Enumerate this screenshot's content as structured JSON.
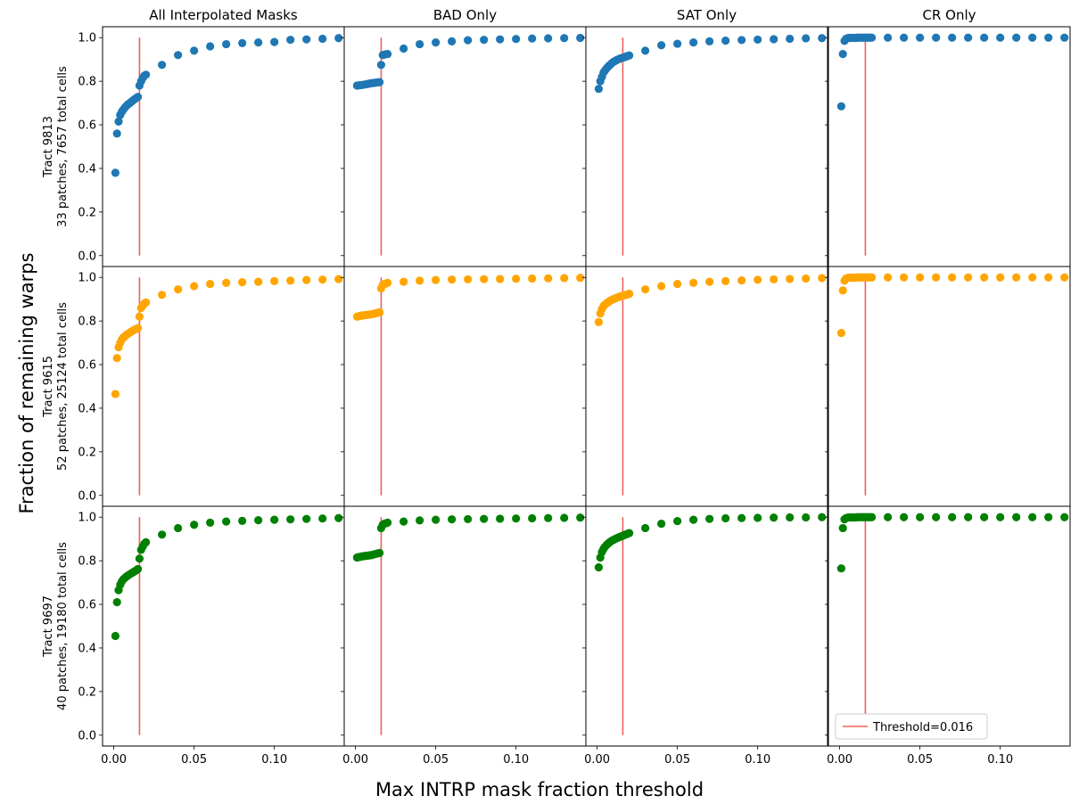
{
  "figure": {
    "xlabel": "Max INTRP mask fraction threshold",
    "ylabel": "Fraction of remaining warps"
  },
  "colors": {
    "row0": "#1f77b4",
    "row1": "#ffa500",
    "row2": "#008000",
    "threshold": "#f0605a"
  },
  "legend": {
    "label": "Threshold=0.016",
    "placement": "lower-right"
  },
  "chart_data": {
    "type": "scatter",
    "xlim": [
      -0.007,
      0.1435
    ],
    "ylim": [
      -0.05,
      1.05
    ],
    "xticks": [
      0.0,
      0.05,
      0.1
    ],
    "xtick_labels": [
      "0.00",
      "0.05",
      "0.10"
    ],
    "yticks": [
      0.0,
      0.2,
      0.4,
      0.6,
      0.8,
      1.0
    ],
    "ytick_labels": [
      "0.0",
      "0.2",
      "0.4",
      "0.6",
      "0.8",
      "1.0"
    ],
    "threshold": 0.016,
    "threshold_ymax": 1.0,
    "thresholds": [
      0.001,
      0.002,
      0.003,
      0.004,
      0.005,
      0.006,
      0.007,
      0.008,
      0.009,
      0.01,
      0.011,
      0.012,
      0.013,
      0.014,
      0.015,
      0.016,
      0.017,
      0.018,
      0.019,
      0.02,
      0.03,
      0.04,
      0.05,
      0.06,
      0.07,
      0.08,
      0.09,
      0.1,
      0.11,
      0.12,
      0.13,
      0.14
    ],
    "columns": [
      "All Interpolated Masks",
      "BAD Only",
      "SAT Only",
      "CR Only"
    ],
    "rows": [
      {
        "label_line1": "Tract 9813",
        "label_line2": "33 patches, 7657 total cells",
        "panels": [
          [
            0.38,
            0.56,
            0.615,
            0.645,
            0.66,
            0.67,
            0.68,
            0.688,
            0.695,
            0.7,
            0.706,
            0.712,
            0.718,
            0.723,
            0.728,
            0.78,
            0.8,
            0.815,
            0.825,
            0.83,
            0.875,
            0.92,
            0.94,
            0.96,
            0.97,
            0.975,
            0.978,
            0.98,
            0.99,
            0.992,
            0.995,
            0.998
          ],
          [
            0.78,
            0.781,
            0.782,
            0.783,
            0.784,
            0.785,
            0.787,
            0.788,
            0.79,
            0.791,
            0.792,
            0.793,
            0.794,
            0.795,
            0.796,
            0.875,
            0.92,
            0.922,
            0.924,
            0.925,
            0.95,
            0.97,
            0.978,
            0.983,
            0.988,
            0.99,
            0.992,
            0.994,
            0.996,
            0.997,
            0.998,
            0.999
          ],
          [
            0.765,
            0.8,
            0.82,
            0.84,
            0.85,
            0.86,
            0.868,
            0.875,
            0.882,
            0.888,
            0.892,
            0.896,
            0.9,
            0.903,
            0.906,
            0.908,
            0.91,
            0.913,
            0.916,
            0.918,
            0.94,
            0.965,
            0.972,
            0.978,
            0.983,
            0.986,
            0.989,
            0.991,
            0.993,
            0.995,
            0.997,
            0.998
          ],
          [
            0.685,
            0.925,
            0.985,
            0.995,
            0.998,
            0.999,
            0.999,
            0.999,
            0.999,
            0.999,
            1.0,
            1.0,
            1.0,
            1.0,
            1.0,
            1.0,
            1.0,
            1.0,
            1.0,
            1.0,
            1.0,
            1.0,
            1.0,
            1.0,
            1.0,
            1.0,
            1.0,
            1.0,
            1.0,
            1.0,
            1.0,
            1.0
          ]
        ]
      },
      {
        "label_line1": "Tract 9615",
        "label_line2": "52 patches, 25124 total cells",
        "panels": [
          [
            0.465,
            0.63,
            0.68,
            0.7,
            0.715,
            0.725,
            0.73,
            0.737,
            0.742,
            0.747,
            0.752,
            0.756,
            0.76,
            0.764,
            0.768,
            0.82,
            0.86,
            0.87,
            0.88,
            0.885,
            0.92,
            0.945,
            0.96,
            0.97,
            0.975,
            0.978,
            0.98,
            0.983,
            0.985,
            0.988,
            0.99,
            0.992
          ],
          [
            0.82,
            0.822,
            0.823,
            0.825,
            0.826,
            0.827,
            0.828,
            0.829,
            0.83,
            0.831,
            0.832,
            0.834,
            0.836,
            0.838,
            0.84,
            0.95,
            0.965,
            0.97,
            0.972,
            0.975,
            0.98,
            0.985,
            0.988,
            0.99,
            0.991,
            0.992,
            0.993,
            0.994,
            0.995,
            0.996,
            0.997,
            0.998
          ],
          [
            0.795,
            0.835,
            0.855,
            0.868,
            0.876,
            0.882,
            0.887,
            0.892,
            0.896,
            0.9,
            0.903,
            0.906,
            0.909,
            0.912,
            0.914,
            0.916,
            0.918,
            0.92,
            0.922,
            0.925,
            0.945,
            0.96,
            0.97,
            0.975,
            0.98,
            0.983,
            0.986,
            0.989,
            0.991,
            0.993,
            0.995,
            0.997
          ],
          [
            0.745,
            0.94,
            0.985,
            0.995,
            0.998,
            0.999,
            0.999,
            0.999,
            0.999,
            0.999,
            1.0,
            1.0,
            1.0,
            1.0,
            1.0,
            1.0,
            1.0,
            1.0,
            1.0,
            1.0,
            1.0,
            1.0,
            1.0,
            1.0,
            1.0,
            1.0,
            1.0,
            1.0,
            1.0,
            1.0,
            1.0,
            1.0
          ]
        ]
      },
      {
        "label_line1": "Tract 9697",
        "label_line2": "40 patches, 19180 total cells",
        "panels": [
          [
            0.455,
            0.61,
            0.665,
            0.69,
            0.705,
            0.715,
            0.722,
            0.728,
            0.733,
            0.738,
            0.743,
            0.747,
            0.752,
            0.756,
            0.762,
            0.81,
            0.85,
            0.865,
            0.878,
            0.885,
            0.92,
            0.95,
            0.965,
            0.975,
            0.98,
            0.983,
            0.986,
            0.988,
            0.99,
            0.992,
            0.994,
            0.996
          ],
          [
            0.815,
            0.817,
            0.818,
            0.82,
            0.821,
            0.822,
            0.823,
            0.824,
            0.825,
            0.826,
            0.828,
            0.83,
            0.832,
            0.834,
            0.836,
            0.95,
            0.965,
            0.97,
            0.972,
            0.975,
            0.98,
            0.985,
            0.988,
            0.99,
            0.991,
            0.992,
            0.993,
            0.994,
            0.995,
            0.996,
            0.997,
            0.998
          ],
          [
            0.77,
            0.815,
            0.84,
            0.855,
            0.865,
            0.873,
            0.88,
            0.886,
            0.891,
            0.895,
            0.899,
            0.903,
            0.906,
            0.909,
            0.912,
            0.915,
            0.918,
            0.921,
            0.924,
            0.927,
            0.95,
            0.97,
            0.982,
            0.988,
            0.992,
            0.995,
            0.996,
            0.997,
            0.998,
            0.999,
            0.999,
            1.0
          ],
          [
            0.765,
            0.95,
            0.99,
            0.996,
            0.998,
            0.999,
            0.999,
            0.999,
            0.999,
            0.999,
            1.0,
            1.0,
            1.0,
            1.0,
            1.0,
            1.0,
            1.0,
            1.0,
            1.0,
            1.0,
            1.0,
            1.0,
            1.0,
            1.0,
            1.0,
            1.0,
            1.0,
            1.0,
            1.0,
            1.0,
            1.0,
            1.0
          ]
        ]
      }
    ]
  }
}
